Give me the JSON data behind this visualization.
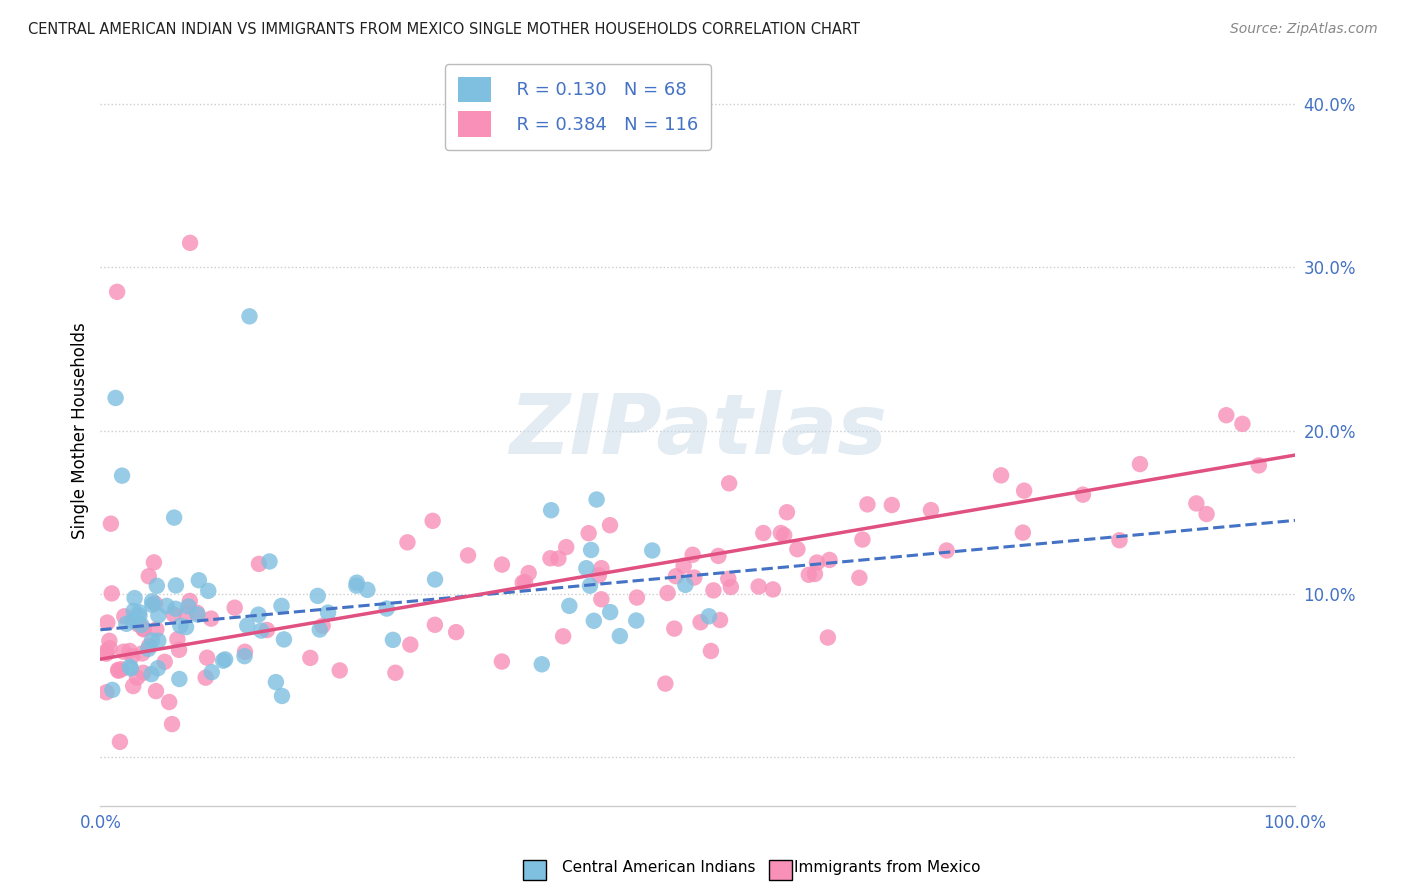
{
  "title": "CENTRAL AMERICAN INDIAN VS IMMIGRANTS FROM MEXICO SINGLE MOTHER HOUSEHOLDS CORRELATION CHART",
  "source": "Source: ZipAtlas.com",
  "ylabel": "Single Mother Households",
  "ytick_vals": [
    0.0,
    0.1,
    0.2,
    0.3,
    0.4
  ],
  "ytick_labels": [
    "",
    "10.0%",
    "20.0%",
    "30.0%",
    "40.0%"
  ],
  "xlim": [
    0.0,
    1.0
  ],
  "ylim": [
    -0.03,
    0.43
  ],
  "legend_r1": "R = 0.130",
  "legend_n1": "N = 68",
  "legend_r2": "R = 0.384",
  "legend_n2": "N = 116",
  "color_blue": "#7fbfdf",
  "color_pink": "#f890b8",
  "color_blue_line": "#4472c4",
  "color_pink_line": "#e05080",
  "watermark": "ZIPatlas",
  "title_color": "#222222",
  "source_color": "#888888",
  "tick_color": "#4472c4",
  "grid_color": "#cccccc",
  "bg_color": "#ffffff"
}
